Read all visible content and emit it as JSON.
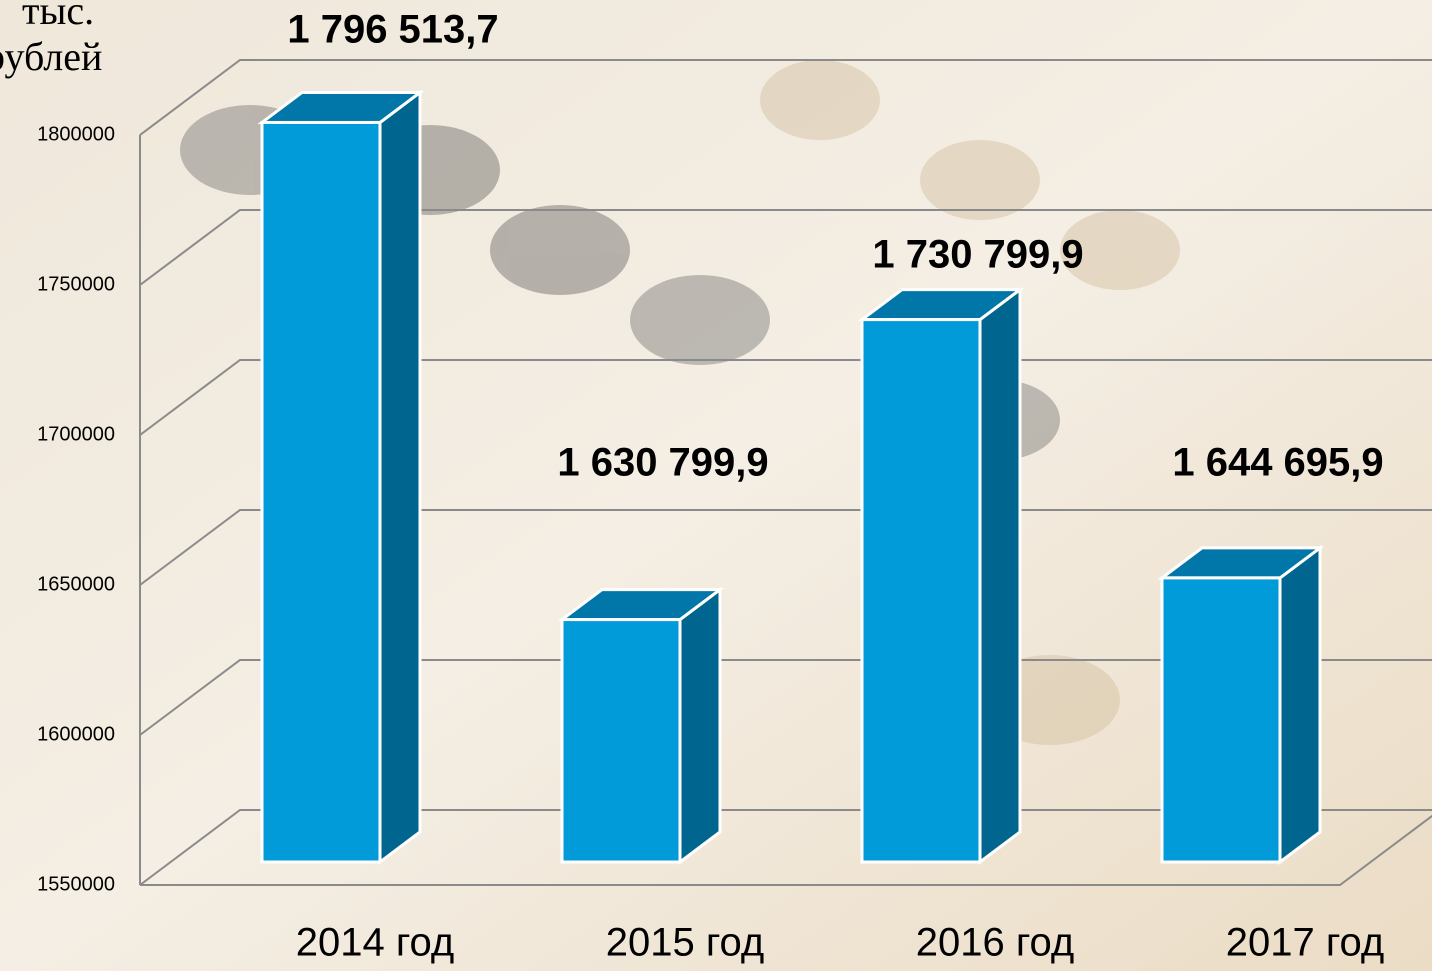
{
  "chart_data": {
    "type": "bar3d",
    "y_label": "тыс. рублей",
    "categories": [
      "2014 год",
      "2015 год",
      "2016 год",
      "2017 год"
    ],
    "values": [
      1796513.7,
      1630799.9,
      1730799.9,
      1644695.9
    ],
    "value_labels": [
      "1 796 513,7",
      "1 630 799,9",
      "1 730 799,9",
      "1 644 695,9"
    ],
    "color": "#009bd8",
    "side_color": "#006690",
    "top_color": "#0077a8",
    "ylim": [
      1550000,
      1800000
    ],
    "yticks": [
      1550000,
      1600000,
      1650000,
      1700000,
      1750000,
      1800000
    ],
    "grid": true
  }
}
